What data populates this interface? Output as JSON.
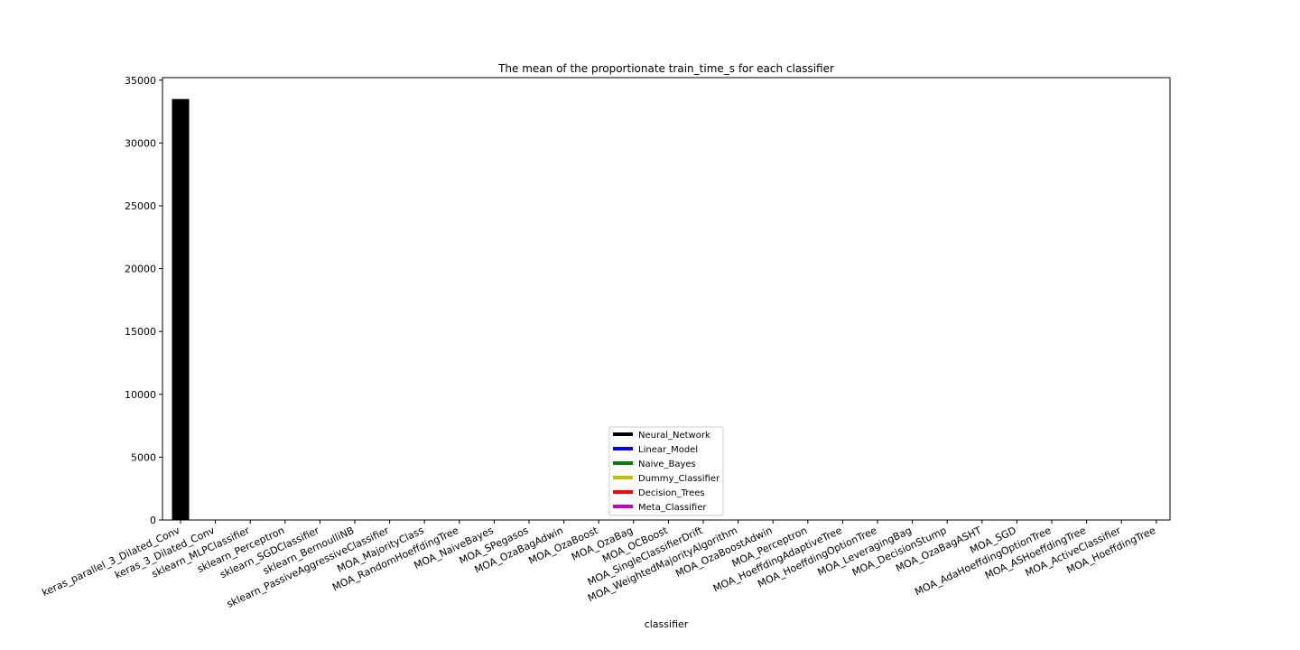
{
  "chart_data": {
    "type": "bar",
    "title": "The mean of  the proportionate train_time_s for each classifier",
    "xlabel": "classifier",
    "ylabel": "",
    "ylim": [
      0,
      35200
    ],
    "yticks": [
      0,
      5000,
      10000,
      15000,
      20000,
      25000,
      30000,
      35000
    ],
    "grid": false,
    "legend_position": "lower center",
    "categories": [
      "keras_parallel_3_Dilated_Conv",
      "keras_3_Dilated_Conv",
      "sklearn_MLPClassifier",
      "sklearn_Perceptron",
      "sklearn_SGDClassifier",
      "sklearn_BernoulliNB",
      "sklearn_PassiveAggressiveClassifier",
      "MOA_MajorityClass",
      "MOA_RandomHoeffdingTree",
      "MOA_NaiveBayes",
      "MOA_SPegasos",
      "MOA_OzaBagAdwin",
      "MOA_OzaBoost",
      "MOA_OzaBag",
      "MOA_OCBoost",
      "MOA_SingleClassifierDrift",
      "MOA_WeightedMajorityAlgorithm",
      "MOA_OzaBoostAdwin",
      "MOA_Perceptron",
      "MOA_HoeffdingAdaptiveTree",
      "MOA_HoeffdingOptionTree",
      "MOA_LeveragingBag",
      "MOA_DecisionStump",
      "MOA_OzaBagASHT",
      "MOA_SGD",
      "MOA_AdaHoeffdingOptionTree",
      "MOA_ASHoeffdingTree",
      "MOA_ActiveClassifier",
      "MOA_HoeffdingTree"
    ],
    "values": [
      33500,
      0,
      0,
      0,
      0,
      0,
      0,
      0,
      0,
      0,
      0,
      0,
      0,
      0,
      0,
      0,
      0,
      0,
      0,
      0,
      0,
      0,
      0,
      0,
      0,
      0,
      0,
      0,
      0
    ],
    "bar_groups": [
      "Neural_Network",
      "Neural_Network",
      "Neural_Network",
      "Linear_Model",
      "Linear_Model",
      "Naive_Bayes",
      "Linear_Model",
      "Dummy_Classifier",
      "Decision_Trees",
      "Naive_Bayes",
      "Linear_Model",
      "Meta_Classifier",
      "Meta_Classifier",
      "Meta_Classifier",
      "Meta_Classifier",
      "Meta_Classifier",
      "Meta_Classifier",
      "Meta_Classifier",
      "Linear_Model",
      "Decision_Trees",
      "Decision_Trees",
      "Meta_Classifier",
      "Decision_Trees",
      "Meta_Classifier",
      "Linear_Model",
      "Decision_Trees",
      "Decision_Trees",
      "Meta_Classifier",
      "Decision_Trees"
    ],
    "legend": [
      {
        "name": "Neural_Network",
        "color": "#000000"
      },
      {
        "name": "Linear_Model",
        "color": "#0000ff"
      },
      {
        "name": "Naive_Bayes",
        "color": "#008000"
      },
      {
        "name": "Dummy_Classifier",
        "color": "#bfbf00"
      },
      {
        "name": "Decision_Trees",
        "color": "#ff0000"
      },
      {
        "name": "Meta_Classifier",
        "color": "#bf00bf"
      }
    ]
  }
}
